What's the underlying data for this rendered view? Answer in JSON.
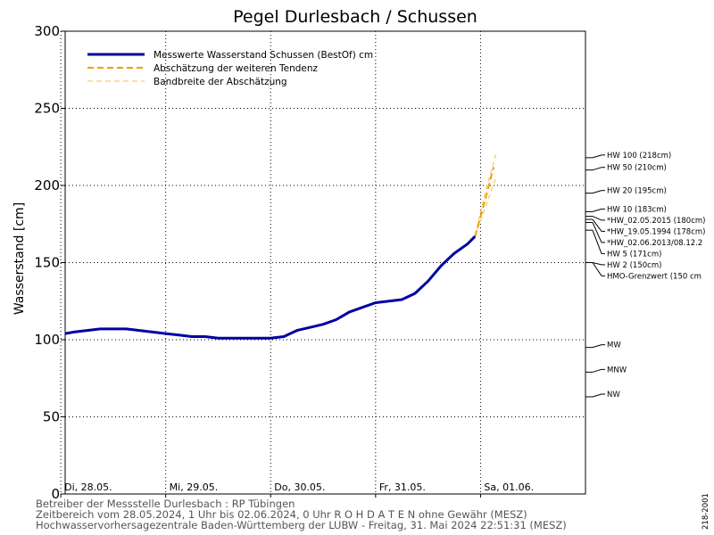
{
  "chart_data": {
    "type": "line",
    "title": "Pegel Durlesbach / Schussen",
    "ylabel": "Wasserstand [cm]",
    "xlabel": "",
    "ylim": [
      0,
      300
    ],
    "yticks": [
      0,
      50,
      100,
      150,
      200,
      250,
      300
    ],
    "xlim": [
      "2024-05-28T01:00",
      "2024-06-02T00:00"
    ],
    "x_tick_labels": [
      "Di, 28.05.",
      "Mi, 29.05.",
      "Do, 30.05.",
      "Fr, 31.05.",
      "Sa, 01.06."
    ],
    "x_tick_dates": [
      "2024-05-28T00:00",
      "2024-05-29T00:00",
      "2024-05-30T00:00",
      "2024-05-31T00:00",
      "2024-06-01T00:00"
    ],
    "grid": true,
    "legend_position": "top-left",
    "series": [
      {
        "name": "Messwerte Wasserstand Schussen   (BestOf)   cm",
        "color": "#0000a0",
        "style": "solid",
        "x": [
          "2024-05-28T01:00",
          "2024-05-28T03:00",
          "2024-05-28T06:00",
          "2024-05-28T09:00",
          "2024-05-28T12:00",
          "2024-05-28T15:00",
          "2024-05-28T18:00",
          "2024-05-28T21:00",
          "2024-05-29T00:00",
          "2024-05-29T03:00",
          "2024-05-29T06:00",
          "2024-05-29T09:00",
          "2024-05-29T12:00",
          "2024-05-29T15:00",
          "2024-05-29T18:00",
          "2024-05-29T21:00",
          "2024-05-30T00:00",
          "2024-05-30T03:00",
          "2024-05-30T06:00",
          "2024-05-30T09:00",
          "2024-05-30T12:00",
          "2024-05-30T15:00",
          "2024-05-30T18:00",
          "2024-05-30T21:00",
          "2024-05-31T00:00",
          "2024-05-31T03:00",
          "2024-05-31T06:00",
          "2024-05-31T09:00",
          "2024-05-31T12:00",
          "2024-05-31T15:00",
          "2024-05-31T18:00",
          "2024-05-31T21:00",
          "2024-05-31T22:45"
        ],
        "y": [
          104,
          105,
          106,
          107,
          107,
          107,
          106,
          105,
          104,
          103,
          102,
          102,
          101,
          101,
          101,
          101,
          101,
          102,
          106,
          108,
          110,
          113,
          118,
          121,
          124,
          125,
          126,
          130,
          138,
          148,
          156,
          162,
          167
        ]
      },
      {
        "name": "Abschätzung der weiteren Tendenz",
        "color": "#f0a000",
        "style": "dashed",
        "x": [
          "2024-05-31T22:45",
          "2024-06-01T01:00",
          "2024-06-01T03:00"
        ],
        "y": [
          167,
          190,
          212
        ]
      },
      {
        "name": "Bandbreite der Abschätzung",
        "color": "#f5c040",
        "style": "thin-dashed",
        "x_upper": [
          "2024-05-31T22:45",
          "2024-06-01T01:00",
          "2024-06-01T03:30"
        ],
        "y_upper": [
          167,
          195,
          220
        ],
        "x_lower": [
          "2024-05-31T22:45",
          "2024-06-01T01:00",
          "2024-06-01T03:30"
        ],
        "y_lower": [
          167,
          185,
          205
        ]
      }
    ],
    "thresholds": [
      {
        "label": "HW 100 (218cm)",
        "value": 218
      },
      {
        "label": "HW 50 (210cm)",
        "value": 210
      },
      {
        "label": "HW 20 (195cm)",
        "value": 195
      },
      {
        "label": "HW 10 (183cm)",
        "value": 183
      },
      {
        "label": "*HW_02.05.2015 (180cm)",
        "value": 180
      },
      {
        "label": "*HW_19.05.1994 (178cm)",
        "value": 178
      },
      {
        "label": "*HW_02.06.2013/08.12.2",
        "value": 176
      },
      {
        "label": "HW 5 (171cm)",
        "value": 171
      },
      {
        "label": "HW 2 (150cm)",
        "value": 150
      },
      {
        "label": "HMO-Grenzwert (150 cm",
        "value": 150
      },
      {
        "label": "MW",
        "value": 95
      },
      {
        "label": "MNW",
        "value": 79
      },
      {
        "label": "NW",
        "value": 63
      }
    ]
  },
  "footer": {
    "line1": "Betreiber der Messstelle Durlesbach : RP Tübingen",
    "line2": "Zeitbereich vom 28.05.2024, 1 Uhr bis 02.06.2024, 0 Uhr    R O H D A T E N ohne Gewähr (MESZ)",
    "line3": "Hochwasservorhersagezentrale Baden-Württemberg der LUBW - Freitag, 31. Mai 2024 22:51:31 (MESZ)",
    "side_code": "218-2001"
  }
}
